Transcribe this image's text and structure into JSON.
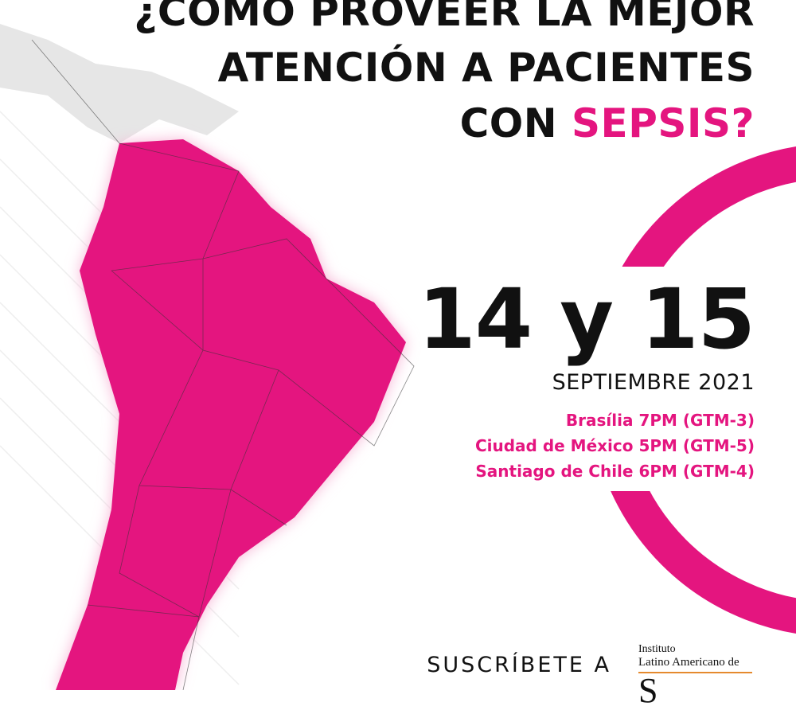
{
  "header": {
    "title_lines": [
      "¿CÓMO PROVEER LA MEJOR",
      "ATENCIÓN A PACIENTES"
    ],
    "title_prefix": "CON",
    "title_highlight": "SEPSIS?"
  },
  "event": {
    "days": "14 y 15",
    "month": "SEPTIEMBRE 2021",
    "times": [
      "Brasília 7PM (GTM-3)",
      "Ciudad de México 5PM (GTM-5)",
      "Santiago de Chile 6PM (GTM-4)"
    ]
  },
  "footer": {
    "cta": "SUSCRÍBETE A",
    "logo": {
      "line1": "Instituto",
      "line2": "Latino Americano de",
      "mark": "S"
    }
  }
}
